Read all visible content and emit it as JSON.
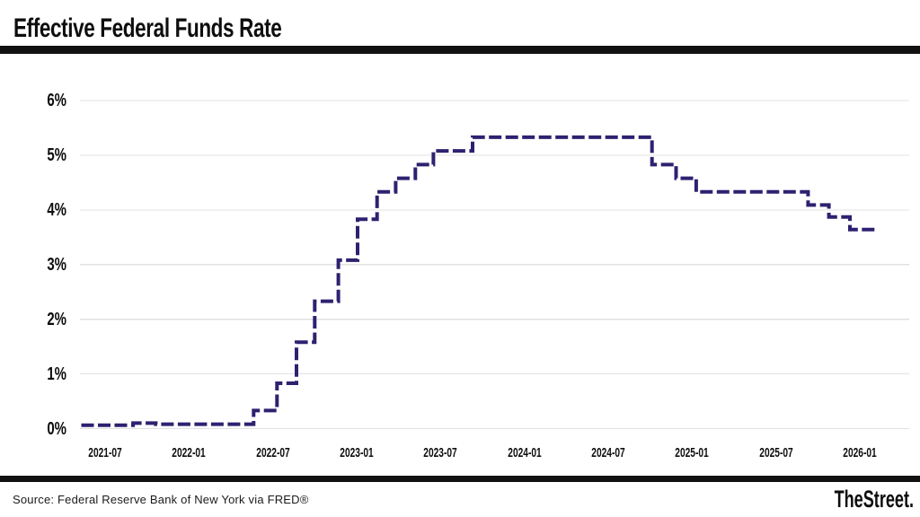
{
  "page": {
    "source": "Source: Federal Reserve Bank of New York via FRED®",
    "brand": "TheStreet."
  },
  "chart_data": {
    "type": "line",
    "subtype": "step-after",
    "line_style": "dashed",
    "line_color": "#2e2170",
    "grid_color": "#e0e0e0",
    "title": "Effective Federal Funds Rate",
    "xlabel": "",
    "ylabel": "",
    "unit": "percent",
    "ylim": [
      0,
      6
    ],
    "grid": "horizontal-only",
    "legend": false,
    "y_ticks": [
      "0%",
      "1%",
      "2%",
      "3%",
      "4%",
      "5%",
      "6%"
    ],
    "x_ticks": [
      "2021-07",
      "2022-01",
      "2022-07",
      "2023-01",
      "2023-07",
      "2024-01",
      "2024-07",
      "2025-01",
      "2025-07",
      "2026-01"
    ],
    "points": [
      {
        "date": "2021-05-10",
        "value": 0.06
      },
      {
        "date": "2021-09-01",
        "value": 0.1
      },
      {
        "date": "2021-10-20",
        "value": 0.08
      },
      {
        "date": "2022-05-20",
        "value": 0.33
      },
      {
        "date": "2022-07-10",
        "value": 0.83
      },
      {
        "date": "2022-08-22",
        "value": 1.58
      },
      {
        "date": "2022-10-01",
        "value": 2.33
      },
      {
        "date": "2022-11-22",
        "value": 3.08
      },
      {
        "date": "2023-01-03",
        "value": 3.83
      },
      {
        "date": "2023-02-15",
        "value": 4.33
      },
      {
        "date": "2023-03-25",
        "value": 4.58
      },
      {
        "date": "2023-05-07",
        "value": 4.83
      },
      {
        "date": "2023-06-16",
        "value": 5.08
      },
      {
        "date": "2023-09-10",
        "value": 5.33
      },
      {
        "date": "2024-10-05",
        "value": 4.83
      },
      {
        "date": "2024-11-27",
        "value": 4.58
      },
      {
        "date": "2025-01-10",
        "value": 4.33
      },
      {
        "date": "2025-09-10",
        "value": 4.09
      },
      {
        "date": "2025-10-25",
        "value": 3.87
      },
      {
        "date": "2025-12-10",
        "value": 3.64
      },
      {
        "date": "2026-02-10",
        "value": 3.64
      }
    ]
  }
}
